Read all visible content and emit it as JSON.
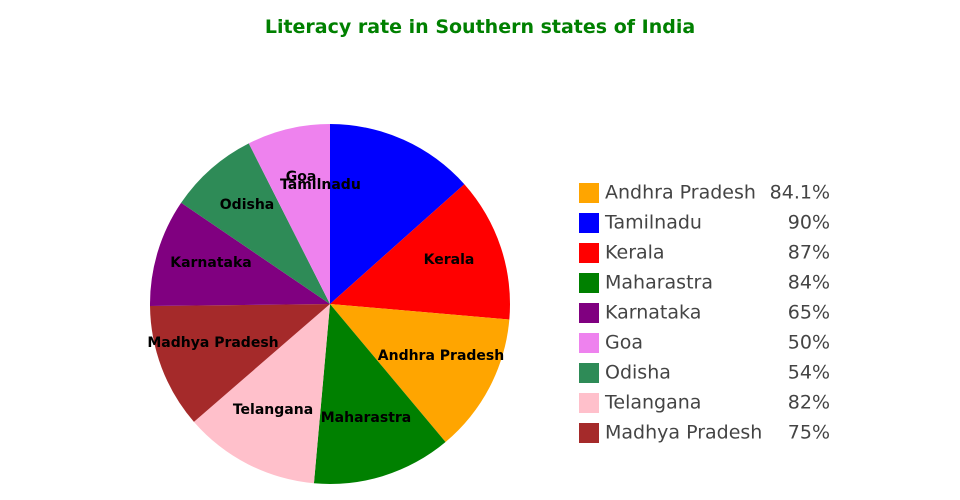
{
  "chart_data": {
    "type": "pie",
    "title": "Literacy rate in Southern states of India",
    "title_color": "#008000",
    "start": "12 o'clock",
    "direction": "clockwise",
    "slices": [
      {
        "label": "Tamilnadu",
        "value": 90,
        "value_label": "90%",
        "color": "#0000ff"
      },
      {
        "label": "Kerala",
        "value": 87,
        "value_label": "87%",
        "color": "#ff0000"
      },
      {
        "label": "Andhra Pradesh",
        "value": 84.1,
        "value_label": "84.1%",
        "color": "#ffa500"
      },
      {
        "label": "Maharastra",
        "value": 84,
        "value_label": "84%",
        "color": "#008000"
      },
      {
        "label": "Telangana",
        "value": 82,
        "value_label": "82%",
        "color": "#ffc0cb"
      },
      {
        "label": "Madhya Pradesh",
        "value": 75,
        "value_label": "75%",
        "color": "#a52a2a"
      },
      {
        "label": "Karnataka",
        "value": 65,
        "value_label": "65%",
        "color": "#800080"
      },
      {
        "label": "Odisha",
        "value": 54,
        "value_label": "54%",
        "color": "#2e8b57"
      },
      {
        "label": "Goa",
        "value": 50,
        "value_label": "50%",
        "color": "#ee82ee"
      }
    ],
    "legend": {
      "placement": "right",
      "order": [
        "Andhra Pradesh",
        "Tamilnadu",
        "Kerala",
        "Maharastra",
        "Karnataka",
        "Goa",
        "Odisha",
        "Telangana",
        "Madhya Pradesh"
      ]
    }
  }
}
